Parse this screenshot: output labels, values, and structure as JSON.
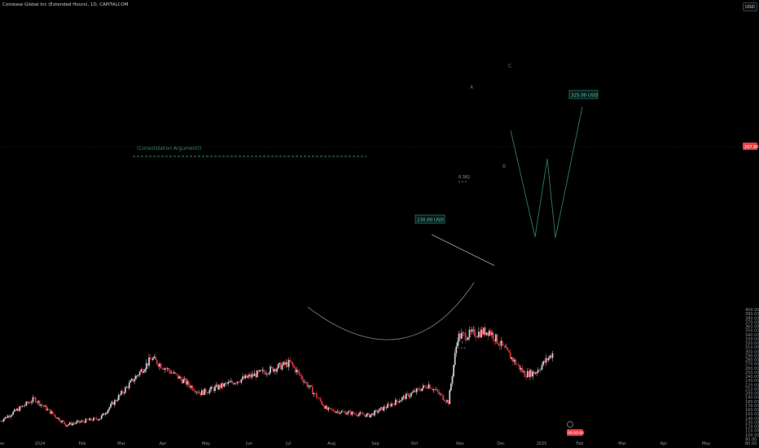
{
  "header": {
    "title": "Coinbase Global Inc (Extended Hours), 1D, CAPITALCOM",
    "currency_button": "USD"
  },
  "colors": {
    "background": "#000000",
    "up_candle": "#c7c9ce",
    "down_candle": "#d6323c",
    "pattern_line": "#2a6f64",
    "annotation_teal": "#2a8a7a",
    "price_tag": "#eb3b45"
  },
  "annotations": {
    "consolidation": "(Consolidation Argument))",
    "fib": "0.382",
    "target_230": "230.00 USD",
    "target_325": "325.00 USD",
    "wave_a": "A",
    "wave_b": "B",
    "wave_c": "C",
    "wave_i": "i",
    "current_price": "297.80",
    "price_tag_bottom": "00:00:00"
  },
  "chart_data": {
    "type": "candlestick",
    "title": "Coinbase Global Inc (Extended Hours), 1D, CAPITALCOM",
    "ylabel": "USD",
    "ylim": [
      80,
      400
    ],
    "y_ticks": [
      80,
      90,
      100,
      110,
      120,
      130,
      140,
      150,
      160,
      170,
      180,
      190,
      200,
      210,
      220,
      230,
      240,
      250,
      260,
      270,
      280,
      290,
      300,
      310,
      320,
      330,
      340,
      350,
      360,
      370,
      380,
      390,
      400
    ],
    "x_tick_labels": [
      "Dec",
      "2024",
      "Feb",
      "Mar",
      "Apr",
      "May",
      "Jun",
      "Jul",
      "Aug",
      "Sep",
      "Oct",
      "Nov",
      "Dec",
      "2025",
      "Feb",
      "Mar",
      "Apr",
      "May"
    ],
    "grid": false,
    "key_prices": [
      {
        "date": "2024-03-25",
        "price": 283
      },
      {
        "date": "2024-05-01",
        "price": 200
      },
      {
        "date": "2024-07-08",
        "price": 272
      },
      {
        "date": "2024-08-05",
        "price": 160
      },
      {
        "date": "2024-09-06",
        "price": 146
      },
      {
        "date": "2024-10-21",
        "price": 220
      },
      {
        "date": "2024-11-05",
        "price": 178
      },
      {
        "date": "2024-11-12",
        "price": 335
      },
      {
        "date": "2024-12-06",
        "price": 349
      },
      {
        "date": "2025-01-02",
        "price": 245
      },
      {
        "date": "2025-01-10",
        "price": 250
      },
      {
        "date": "2025-01-24",
        "price": 298
      }
    ],
    "levels": [
      {
        "label": "(Consolidation Argument))",
        "price": 291
      },
      {
        "label": "0.382",
        "price": 272
      },
      {
        "label": "230.00 USD",
        "price": 230
      },
      {
        "label": "325.00 USD",
        "price": 325
      }
    ],
    "last_price": 297.8
  }
}
